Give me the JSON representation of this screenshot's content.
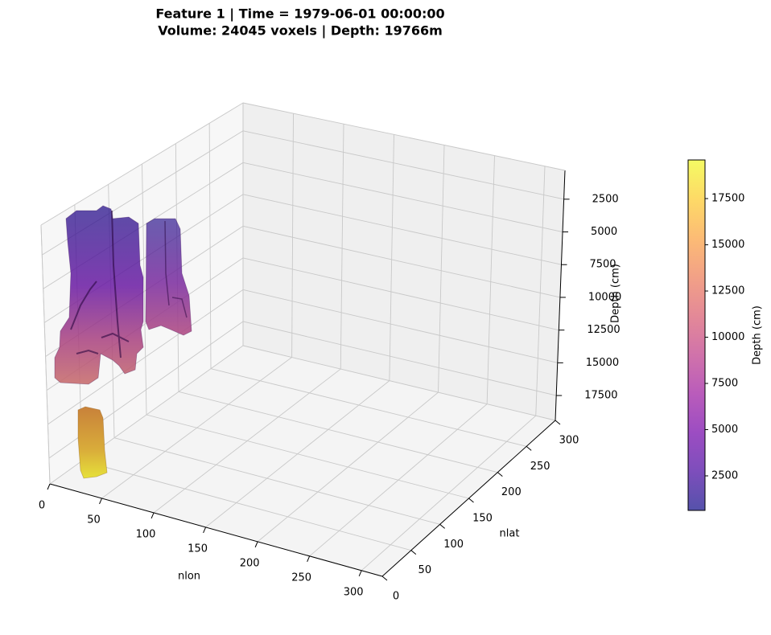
{
  "chart_data": {
    "type": "volume3d",
    "title": [
      "Feature 1 | Time = 1979-06-01 00:00:00",
      "Volume: 24045 voxels | Depth: 19766m"
    ],
    "xlabel": "nlon",
    "ylabel": "nlat",
    "zlabel": "Depth (cm)",
    "xlim": [
      0,
      320
    ],
    "xticks": [
      0,
      50,
      100,
      150,
      200,
      250,
      300
    ],
    "ylim": [
      0,
      300
    ],
    "yticks": [
      0,
      50,
      100,
      150,
      200,
      250,
      300
    ],
    "zlim": [
      300,
      19400
    ],
    "zticks": [
      2500,
      5000,
      7500,
      10000,
      12500,
      15000,
      17500
    ],
    "z_inverted": true,
    "grid": true,
    "colorbar": {
      "label": "Depth (cm)",
      "lim": [
        630,
        19590
      ],
      "ticks": [
        2500,
        5000,
        7500,
        10000,
        12500,
        15000,
        17500
      ],
      "colormap": [
        "#0d0887",
        "#46039f",
        "#7201a8",
        "#9c179e",
        "#bd3786",
        "#d8576b",
        "#ed7953",
        "#fb9f3a",
        "#fdca26",
        "#f0f921"
      ]
    }
  }
}
